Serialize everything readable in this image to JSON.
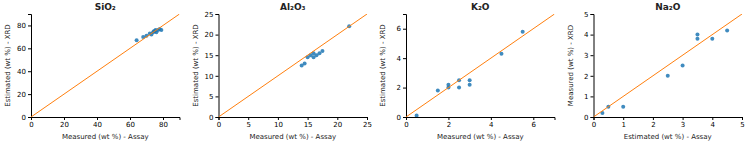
{
  "chart_data": [
    {
      "type": "scatter",
      "title": "SiO₂",
      "x_label": "Measured (wt %) - Assay",
      "y_label": "Estimated (wt %) - XRD",
      "xlim": [
        0,
        90
      ],
      "ylim": [
        0,
        90
      ],
      "xticks": [
        0,
        20,
        40,
        60,
        80
      ],
      "yticks": [
        0,
        20,
        40,
        60,
        80
      ],
      "series": [
        {
          "type": "scatter",
          "x": [
            64,
            68,
            70,
            72,
            73,
            74,
            74.5,
            75,
            75.5,
            76,
            77,
            78,
            79
          ],
          "values": [
            67,
            70,
            71,
            73,
            72,
            74,
            75,
            75,
            76,
            74,
            76,
            77,
            76
          ]
        },
        {
          "type": "line",
          "x": [
            0,
            90
          ],
          "values": [
            0,
            90
          ]
        }
      ]
    },
    {
      "type": "scatter",
      "title": "Al₂O₃",
      "x_label": "Measured (wt %) - Assay",
      "y_label": "Estimated (wt %) - XRD",
      "xlim": [
        0,
        25
      ],
      "ylim": [
        0,
        25
      ],
      "xticks": [
        0,
        5,
        10,
        15,
        20,
        25
      ],
      "yticks": [
        0,
        5,
        10,
        15,
        20,
        25
      ],
      "series": [
        {
          "type": "scatter",
          "x": [
            14.0,
            14.5,
            15.0,
            15.5,
            16.0,
            16.0,
            16.5,
            17.0,
            17.5,
            22.0
          ],
          "values": [
            12.5,
            13.0,
            14.5,
            15.0,
            14.5,
            15.5,
            15.0,
            15.5,
            16.0,
            22.0
          ]
        },
        {
          "type": "line",
          "x": [
            0,
            25
          ],
          "values": [
            0,
            25
          ]
        }
      ]
    },
    {
      "type": "scatter",
      "title": "K₂O",
      "x_label": "Measured (wt %) - Assay",
      "y_label": "Estimated (wt %) - XRD",
      "xlim": [
        0,
        7
      ],
      "ylim": [
        0,
        7
      ],
      "xticks": [
        0,
        2,
        4,
        6
      ],
      "yticks": [
        0,
        2,
        4,
        6
      ],
      "series": [
        {
          "type": "scatter",
          "x": [
            0.5,
            1.5,
            2.0,
            2.0,
            2.5,
            2.5,
            3.0,
            3.0,
            4.5,
            5.5
          ],
          "values": [
            0.1,
            1.8,
            2.0,
            2.2,
            2.0,
            2.5,
            2.2,
            2.5,
            4.3,
            5.8
          ]
        },
        {
          "type": "line",
          "x": [
            0,
            7
          ],
          "values": [
            0,
            7
          ]
        }
      ]
    },
    {
      "type": "scatter",
      "title": "Na₂O",
      "x_label": "Estimated (wt %) - Assay",
      "y_label": "Measured (wt %) - XRD",
      "xlim": [
        0,
        5
      ],
      "ylim": [
        0,
        5
      ],
      "xticks": [
        0,
        1,
        2,
        3,
        4,
        5
      ],
      "yticks": [
        0,
        1,
        2,
        3,
        4,
        5
      ],
      "series": [
        {
          "type": "scatter",
          "x": [
            0.3,
            0.5,
            1.0,
            2.5,
            3.0,
            3.5,
            3.5,
            4.0,
            4.5
          ],
          "values": [
            0.2,
            0.5,
            0.5,
            2.0,
            2.5,
            3.8,
            4.0,
            3.8,
            4.2
          ]
        },
        {
          "type": "line",
          "x": [
            0,
            5
          ],
          "values": [
            0,
            5
          ]
        }
      ]
    }
  ]
}
